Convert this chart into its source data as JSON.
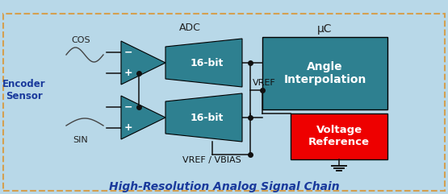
{
  "bg_color": "#b8d8e8",
  "border_color": "#d4a050",
  "teal_color": "#2e8090",
  "red_color": "#ee0000",
  "title": "High-Resolution Analog Signal Chain",
  "title_color": "#1a3a9c",
  "label_adc": "ADC",
  "label_uc": "μC",
  "label_16bit": "16-bit",
  "label_angle": "Angle\nInterpolation",
  "label_vref_box": "Voltage\nReference",
  "label_vref": "VREF",
  "label_vref_vbias": "VREF / VBIAS",
  "label_cos": "COS",
  "label_sin": "SIN",
  "label_encoder": "Encoder\nSensor",
  "line_color": "#111111",
  "encoder_color": "#1a3a9c"
}
